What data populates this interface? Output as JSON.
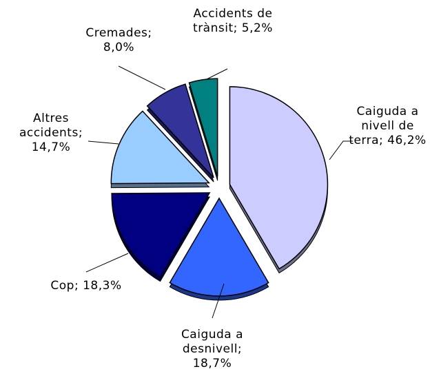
{
  "chart_data": {
    "type": "pie",
    "categories": [
      "Caiguda a nivell de terra;",
      "Caiguda a desnivell;",
      "Cop;",
      "Altres accidents;",
      "Cremades;",
      "Accidents de trànsit;"
    ],
    "values": [
      46.2,
      18.7,
      18.3,
      14.7,
      8.0,
      5.2
    ],
    "value_labels": [
      "46,2%",
      "18,7%",
      "18,3%",
      "14,7%",
      "8,0%",
      "5,2%"
    ],
    "colors": [
      "#ccccff",
      "#3366ff",
      "#000080",
      "#99ccff",
      "#333399",
      "#008080"
    ]
  }
}
